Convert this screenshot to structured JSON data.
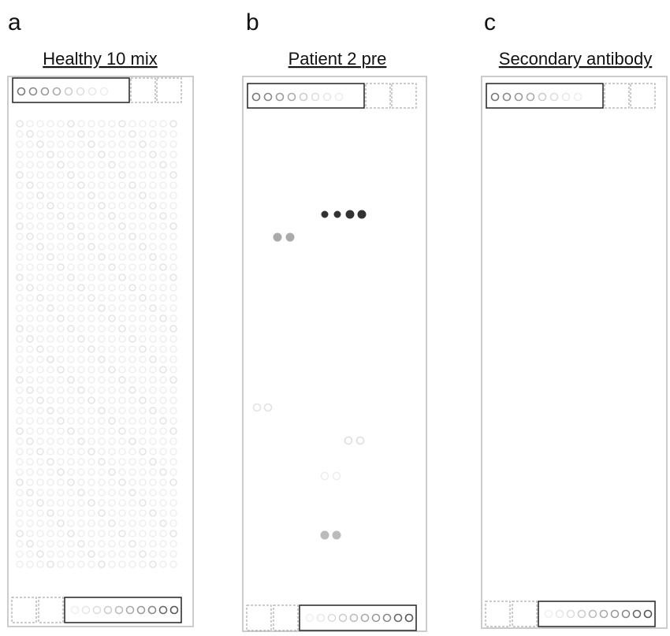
{
  "panels": [
    {
      "letter": "a",
      "title": "Healthy 10 mix"
    },
    {
      "letter": "b",
      "title": "Patient 2 pre"
    },
    {
      "letter": "c",
      "title": "Secondary antibody"
    }
  ]
}
